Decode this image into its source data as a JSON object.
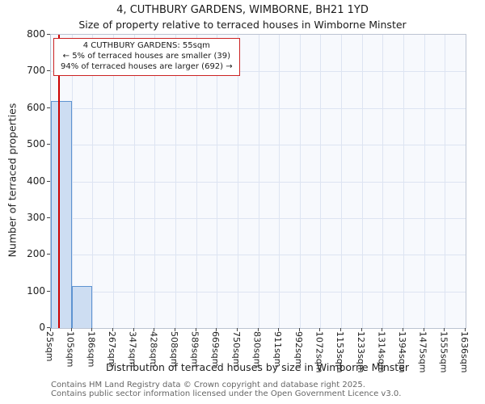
{
  "footer": {
    "line1": "Contains HM Land Registry data © Crown copyright and database right 2025.",
    "line2": "Contains public sector information licensed under the Open Government Licence v3.0."
  },
  "chart_data": {
    "type": "bar",
    "title": "4, CUTHBURY GARDENS, WIMBORNE, BH21 1YD",
    "subtitle": "Size of property relative to terraced houses in Wimborne Minster",
    "xlabel": "Distribution of terraced houses by size in Wimborne Minster",
    "ylabel": "Number of terraced properties",
    "x_tick_labels": [
      "25sqm",
      "105sqm",
      "186sqm",
      "267sqm",
      "347sqm",
      "428sqm",
      "508sqm",
      "589sqm",
      "669sqm",
      "750sqm",
      "830sqm",
      "911sqm",
      "992sqm",
      "1072sqm",
      "1153sqm",
      "1233sqm",
      "1314sqm",
      "1394sqm",
      "1475sqm",
      "1555sqm",
      "1636sqm"
    ],
    "bin_edges_sqm": [
      25,
      105,
      186,
      267,
      347,
      428,
      508,
      589,
      669,
      750,
      830,
      911,
      992,
      1072,
      1153,
      1233,
      1314,
      1394,
      1475,
      1555,
      1636
    ],
    "values": [
      620,
      115,
      0,
      0,
      0,
      0,
      0,
      0,
      0,
      0,
      0,
      0,
      0,
      0,
      0,
      0,
      0,
      0,
      0,
      0
    ],
    "ylim": [
      0,
      800
    ],
    "y_ticks": [
      0,
      100,
      200,
      300,
      400,
      500,
      600,
      700,
      800
    ],
    "grid": true,
    "legend": "none",
    "marker_sqm": 55,
    "marker_color": "#cc0000",
    "bar_fill": "#cdddf2",
    "bar_edge": "#5e93d1",
    "annotation_lines": [
      "4 CUTHBURY GARDENS: 55sqm",
      "← 5% of terraced houses are smaller (39)",
      "94% of terraced houses are larger (692) →"
    ]
  }
}
